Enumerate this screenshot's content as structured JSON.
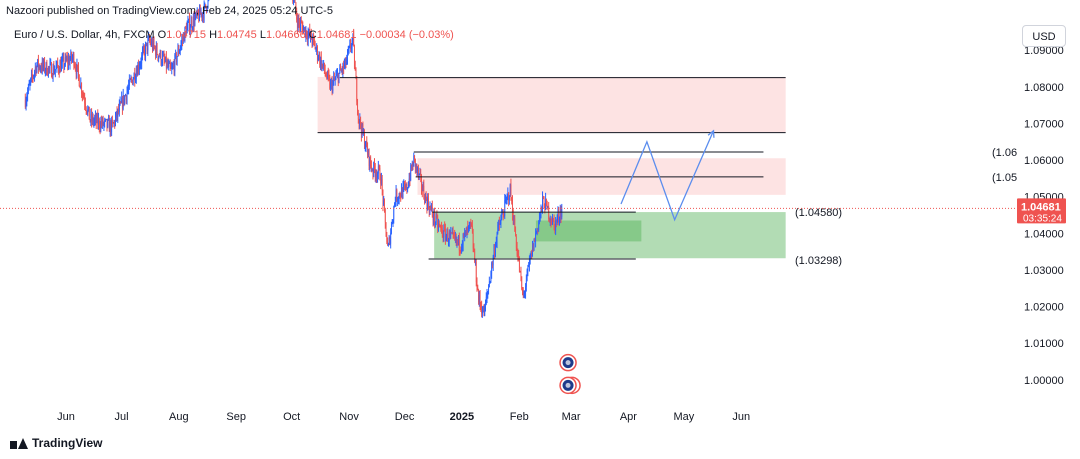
{
  "header": {
    "published": "Nazoori published on TradingView.com, Feb 24, 2025 05:24 UTC-5"
  },
  "legend": {
    "symbol": "Euro / U.S. Dollar, 4h, FXCM",
    "open_label": "O",
    "open": "1.04715",
    "high_label": "H",
    "high": "1.04745",
    "low_label": "L",
    "low": "1.04666",
    "close_label": "C",
    "close": "1.04681",
    "change": "−0.00034 (−0.03%)"
  },
  "currency": "USD",
  "footer": {
    "brand": "TradingView"
  },
  "colors": {
    "up": "#2962ff",
    "down": "#ef5350",
    "resistance_zone": "#fddede",
    "support_zone": "#a5d6a7",
    "support_zone_inner": "#81c784",
    "projection": "#5b8dee",
    "price_badge": "#ef5350"
  },
  "chart_data": {
    "type": "candlestick",
    "instrument": "Euro / U.S. Dollar",
    "timeframe": "4h",
    "y_axis": {
      "ticks": [
        "1.09000",
        "1.08000",
        "1.07000",
        "1.06000",
        "1.05000",
        "1.04000",
        "1.03000",
        "1.02000",
        "1.01000",
        "1.00000"
      ],
      "tick_values": [
        1.09,
        1.08,
        1.07,
        1.06,
        1.05,
        1.04,
        1.03,
        1.02,
        1.01,
        1.0
      ],
      "ylim": [
        0.9945,
        1.1037
      ]
    },
    "x_axis": {
      "ticks": [
        "Jun",
        "Jul",
        "Aug",
        "Sep",
        "Oct",
        "Nov",
        "Dec",
        "2025",
        "Feb",
        "Mar",
        "Apr",
        "May",
        "Jun"
      ],
      "tick_dates": [
        "2024-06-01",
        "2024-07-01",
        "2024-08-01",
        "2024-09-01",
        "2024-10-01",
        "2024-11-01",
        "2024-12-01",
        "2025-01-01",
        "2025-02-01",
        "2025-03-01",
        "2025-04-01",
        "2025-05-01",
        "2025-06-01"
      ],
      "bold_ticks": [
        "2025"
      ]
    },
    "price_path": [
      {
        "date": "2024-05-10",
        "price": 1.0765
      },
      {
        "date": "2024-05-16",
        "price": 1.086
      },
      {
        "date": "2024-05-25",
        "price": 1.0845
      },
      {
        "date": "2024-06-05",
        "price": 1.088
      },
      {
        "date": "2024-06-14",
        "price": 1.071
      },
      {
        "date": "2024-06-26",
        "price": 1.069
      },
      {
        "date": "2024-07-05",
        "price": 1.08
      },
      {
        "date": "2024-07-16",
        "price": 1.0925
      },
      {
        "date": "2024-07-28",
        "price": 1.084
      },
      {
        "date": "2024-08-05",
        "price": 1.096
      },
      {
        "date": "2024-08-15",
        "price": 1.101
      },
      {
        "date": "2024-08-25",
        "price": 1.118
      },
      {
        "date": "2024-09-05",
        "price": 1.107
      },
      {
        "date": "2024-09-17",
        "price": 1.112
      },
      {
        "date": "2024-09-27",
        "price": 1.119
      },
      {
        "date": "2024-10-04",
        "price": 1.098
      },
      {
        "date": "2024-10-12",
        "price": 1.093
      },
      {
        "date": "2024-10-22",
        "price": 1.08
      },
      {
        "date": "2024-10-30",
        "price": 1.086
      },
      {
        "date": "2024-11-03",
        "price": 1.093
      },
      {
        "date": "2024-11-06",
        "price": 1.072
      },
      {
        "date": "2024-11-13",
        "price": 1.058
      },
      {
        "date": "2024-11-18",
        "price": 1.056
      },
      {
        "date": "2024-11-22",
        "price": 1.035
      },
      {
        "date": "2024-11-26",
        "price": 1.05
      },
      {
        "date": "2024-12-02",
        "price": 1.052
      },
      {
        "date": "2024-12-06",
        "price": 1.06
      },
      {
        "date": "2024-12-12",
        "price": 1.05
      },
      {
        "date": "2024-12-18",
        "price": 1.043
      },
      {
        "date": "2024-12-22",
        "price": 1.04
      },
      {
        "date": "2024-12-31",
        "price": 1.037
      },
      {
        "date": "2025-01-06",
        "price": 1.042
      },
      {
        "date": "2025-01-10",
        "price": 1.022
      },
      {
        "date": "2025-01-13",
        "price": 1.018
      },
      {
        "date": "2025-01-20",
        "price": 1.04
      },
      {
        "date": "2025-01-27",
        "price": 1.052
      },
      {
        "date": "2025-02-03",
        "price": 1.022
      },
      {
        "date": "2025-02-07",
        "price": 1.033
      },
      {
        "date": "2025-02-14",
        "price": 1.049
      },
      {
        "date": "2025-02-20",
        "price": 1.042
      },
      {
        "date": "2025-02-24",
        "price": 1.04681
      }
    ],
    "levels": [
      {
        "label": "",
        "price": 1.0825,
        "x_from_date": "2024-10-27",
        "x_to_date": "2025-06-25"
      },
      {
        "label": "",
        "price": 1.0675,
        "x_from_date": "2024-10-15",
        "x_to_date": "2025-06-25"
      },
      {
        "label": "(1.06",
        "price": 1.0622,
        "x_from_date": "2024-12-06",
        "x_to_date": "2025-06-13"
      },
      {
        "label": "(1.05",
        "price": 1.0554,
        "x_from_date": "2024-12-07",
        "x_to_date": "2025-06-13"
      },
      {
        "label": "(1.04580)",
        "price": 1.0458,
        "x_from_date": "2024-12-16",
        "x_to_date": "2025-04-05"
      },
      {
        "label": "(1.03298)",
        "price": 1.03298,
        "x_from_date": "2024-12-14",
        "x_to_date": "2025-04-05"
      }
    ],
    "zones": [
      {
        "kind": "resistance",
        "from_date": "2024-10-15",
        "to_date": "2025-06-25",
        "y_top": 1.0827,
        "y_bottom": 1.0675
      },
      {
        "kind": "resistance",
        "from_date": "2024-12-08",
        "to_date": "2025-06-25",
        "y_top": 1.0605,
        "y_bottom": 1.0505
      },
      {
        "kind": "support",
        "from_date": "2024-12-17",
        "to_date": "2025-06-25",
        "y_top": 1.0458,
        "y_bottom": 1.0332
      },
      {
        "kind": "support-inner",
        "from_date": "2025-02-10",
        "to_date": "2025-04-08",
        "y_top": 1.0435,
        "y_bottom": 1.0378
      }
    ],
    "projection": [
      {
        "date": "2025-03-28",
        "price": 1.048
      },
      {
        "date": "2025-04-11",
        "price": 1.065
      },
      {
        "date": "2025-04-26",
        "price": 1.0437
      },
      {
        "date": "2025-05-17",
        "price": 1.068
      }
    ],
    "last_price": {
      "value": "1.04681",
      "countdown": "03:35:24",
      "price": 1.04681
    },
    "event_markers": [
      {
        "date": "2025-03-01",
        "price": 1.0047,
        "count": 1
      },
      {
        "date": "2025-03-01",
        "price": 0.9985,
        "count": 2
      }
    ]
  }
}
